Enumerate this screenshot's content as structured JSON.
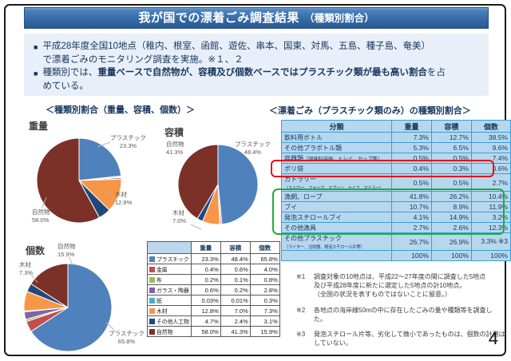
{
  "title": {
    "main": "我が国での漂着ごみ調査結果",
    "sub": "　（種類別割合）"
  },
  "bullets": {
    "marker": "■",
    "b1_line1": "平成28年度全国10地点（稚内、根室、函館、遊佐、串本、国東、対馬、五島、種子島、奄美）",
    "b1_line2": "で漂着ごみのモニタリング調査を実施。※１、２",
    "b2_prefix": "種類別では、",
    "b2_bold": "重量ベースで自然物が、容積及び個数ベースではプラスチック類が最も高い割合",
    "b2_suffix": "を占",
    "b2_line2": "めている。"
  },
  "left_section": {
    "heading": "＜種類別割合（重量、容積、個数）＞",
    "pies": [
      {
        "title": "重量",
        "labels": [
          {
            "name": "プラスチック",
            "pct": "23.3%"
          },
          {
            "name": "木材",
            "pct": "12.8%"
          },
          {
            "name": "自然物",
            "pct": "58.0%"
          }
        ]
      },
      {
        "title": "容積",
        "labels": [
          {
            "name": "自然物",
            "pct": "41.3%"
          },
          {
            "name": "プラスチック",
            "pct": "48.4%"
          },
          {
            "name": "木材",
            "pct": "7.0%"
          }
        ]
      },
      {
        "title": "個数",
        "labels": [
          {
            "name": "自然物",
            "pct": "15.9%"
          },
          {
            "name": "木材",
            "pct": "7.3%"
          },
          {
            "name": "プラスチック",
            "pct": "65.8%"
          }
        ]
      }
    ],
    "legend_table": {
      "headers": [
        "",
        "重量",
        "容積",
        "個数"
      ],
      "rows": [
        {
          "label": "プラスチック",
          "color": "#4f81bd",
          "values": [
            "23.3%",
            "48.4%",
            "65.8%"
          ]
        },
        {
          "label": "金属",
          "color": "#c0504d",
          "values": [
            "0.4%",
            "0.6%",
            "4.0%"
          ]
        },
        {
          "label": "布",
          "color": "#9bbb59",
          "values": [
            "0.2%",
            "0.1%",
            "0.8%"
          ]
        },
        {
          "label": "ガラス・陶器",
          "color": "#8064a2",
          "values": [
            "0.6%",
            "0.2%",
            "2.8%"
          ]
        },
        {
          "label": "紙",
          "color": "#4bacc6",
          "values": [
            "0.03%",
            "0.01%",
            "0.3%"
          ]
        },
        {
          "label": "木材",
          "color": "#f79646",
          "values": [
            "12.8%",
            "7.0%",
            "7.3%"
          ]
        },
        {
          "label": "その他人工物",
          "color": "#1f497d",
          "values": [
            "4.7%",
            "2.4%",
            "3.1%"
          ]
        },
        {
          "label": "自然物",
          "color": "#7b3028",
          "values": [
            "58.0%",
            "41.3%",
            "15.9%"
          ]
        }
      ]
    }
  },
  "right_section": {
    "heading": "＜漂着ごみ（プラスチック類のみ）の種類別割合＞",
    "table": {
      "headers": [
        "分類",
        "重量",
        "容積",
        "個数"
      ],
      "rows": [
        {
          "label": "飲料用ボトル",
          "values": [
            "7.3%",
            "12.7%",
            "38.5%"
          ]
        },
        {
          "label": "その他プラボトル類",
          "values": [
            "5.3%",
            "6.5%",
            "9.6%"
          ]
        },
        {
          "label": "容器類",
          "inline_sub": "（調味料容器、トレイ、カップ等）",
          "values": [
            "0.5%",
            "0.5%",
            "7.4%"
          ]
        },
        {
          "label": "ポリ袋",
          "values": [
            "0.4%",
            "0.3%",
            "0.6%"
          ]
        },
        {
          "label": "カトラリー",
          "sub": "（ストロー、フォーク、スプーン、ナイフ、マドラー）",
          "values": [
            "0.5%",
            "0.5%",
            "2.7%"
          ]
        },
        {
          "label": "漁網、ロープ",
          "values": [
            "41.8%",
            "26.2%",
            "10.4%"
          ]
        },
        {
          "label": "ブイ",
          "values": [
            "10.7%",
            "8.9%",
            "11.9%"
          ]
        },
        {
          "label": "発泡スチロールブイ",
          "values": [
            "4.1%",
            "14.9%",
            "3.2%"
          ]
        },
        {
          "label": "その他漁具",
          "values": [
            "2.7%",
            "2.6%",
            "12.3%"
          ]
        },
        {
          "label": "その他プラスチック",
          "sub": "（ライター、注射器、発泡スチロール片等）",
          "values": [
            "26.7%",
            "26.9%",
            "3.3% ※3"
          ]
        }
      ],
      "total": [
        "100%",
        "100%",
        "100%"
      ]
    }
  },
  "notes": [
    {
      "marker": "※1",
      "lines": [
        "調査対象の10地点は、平成22～27年度の間に調査した5地点",
        "及び平成28年度に新たに選定した5地点の計10地点。",
        "（全国の状況を表すものではないことに留意。）"
      ]
    },
    {
      "marker": "※2",
      "lines": [
        "各地点の海岸線50mの中に存在したごみの量や種類等を調査し",
        "た。"
      ]
    },
    {
      "marker": "※3",
      "lines": [
        "発泡スチロール片等、劣化して微小であったものは、個数の計測は",
        "していない。"
      ]
    }
  ],
  "page": {
    "number": "4"
  },
  "chart_data": [
    {
      "type": "pie",
      "title": "重量",
      "categories": [
        "プラスチック",
        "金属",
        "布",
        "ガラス・陶器",
        "紙",
        "木材",
        "その他人工物",
        "自然物"
      ],
      "colors": [
        "#4f81bd",
        "#c0504d",
        "#9bbb59",
        "#8064a2",
        "#4bacc6",
        "#f79646",
        "#1f497d",
        "#7b3028"
      ],
      "values": [
        23.3,
        0.4,
        0.2,
        0.6,
        0.03,
        12.8,
        4.7,
        58.0
      ]
    },
    {
      "type": "pie",
      "title": "容積",
      "categories": [
        "プラスチック",
        "金属",
        "布",
        "ガラス・陶器",
        "紙",
        "木材",
        "その他人工物",
        "自然物"
      ],
      "colors": [
        "#4f81bd",
        "#c0504d",
        "#9bbb59",
        "#8064a2",
        "#4bacc6",
        "#f79646",
        "#1f497d",
        "#7b3028"
      ],
      "values": [
        48.4,
        0.6,
        0.1,
        0.2,
        0.01,
        7.0,
        2.4,
        41.3
      ]
    },
    {
      "type": "pie",
      "title": "個数",
      "categories": [
        "プラスチック",
        "金属",
        "布",
        "ガラス・陶器",
        "紙",
        "木材",
        "その他人工物",
        "自然物"
      ],
      "colors": [
        "#4f81bd",
        "#c0504d",
        "#9bbb59",
        "#8064a2",
        "#4bacc6",
        "#f79646",
        "#1f497d",
        "#7b3028"
      ],
      "values": [
        65.8,
        4.0,
        0.8,
        2.8,
        0.3,
        7.3,
        3.1,
        15.9
      ]
    }
  ]
}
